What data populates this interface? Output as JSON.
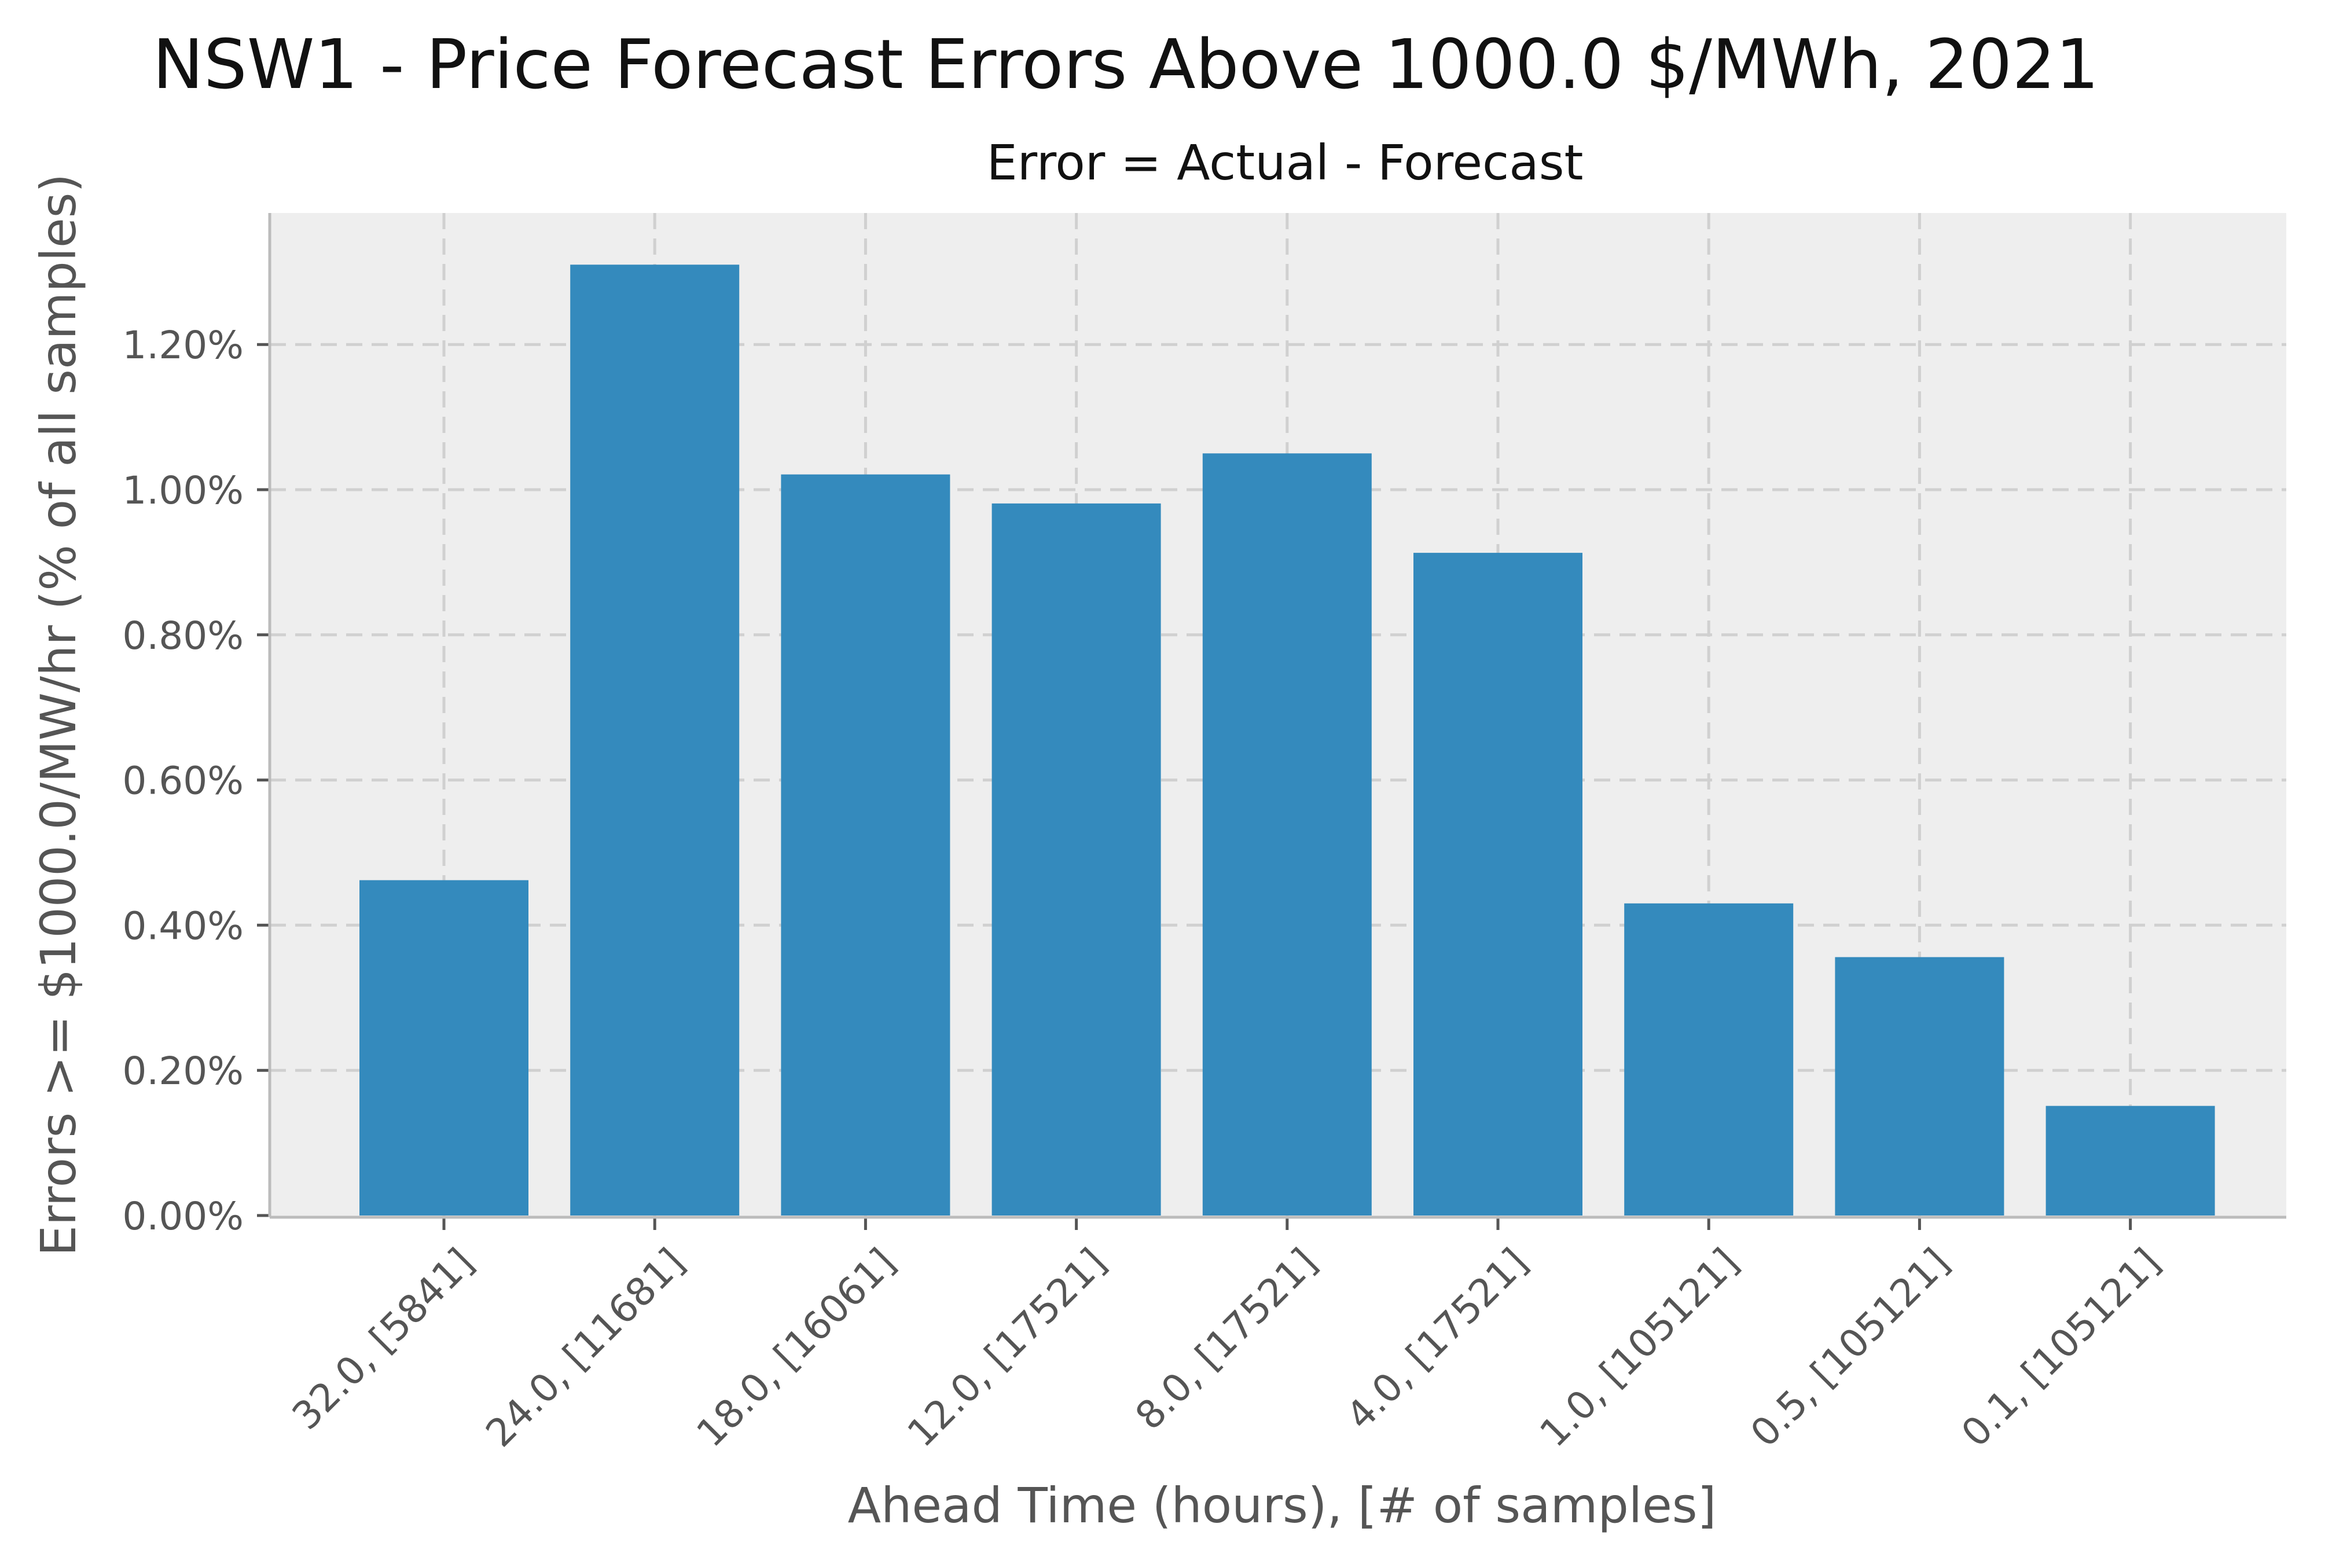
{
  "chart_data": {
    "type": "bar",
    "title": "NSW1 - Price Forecast Errors Above 1000.0 $/MWh, 2021",
    "subtitle": "Error = Actual - Forecast",
    "xlabel": "Ahead Time (hours), [# of samples]",
    "ylabel": "Errors >= $1000.0/MW/hr (% of all samples)",
    "categories": [
      "32.0, [5841]",
      "24.0, [11681]",
      "18.0, [16061]",
      "12.0, [17521]",
      "8.0, [17521]",
      "4.0, [17521]",
      "1.0, [105121]",
      "0.5, [105121]",
      "0.1, [105121]"
    ],
    "values": [
      0.462,
      1.31,
      1.021,
      0.981,
      1.05,
      0.913,
      0.43,
      0.356,
      0.151
    ],
    "value_unit": "%",
    "ylim": [
      0,
      1.38
    ],
    "yticks": [
      0,
      0.2,
      0.4,
      0.6,
      0.8,
      1.0,
      1.2
    ],
    "ytick_labels": [
      "0.00%",
      "0.20%",
      "0.40%",
      "0.60%",
      "0.80%",
      "1.00%",
      "1.20%"
    ],
    "grid": true,
    "colors": {
      "bar": "#348ABD",
      "plot_background": "#EEEEEE",
      "grid": "#D0D0D0",
      "text": "#555555"
    }
  }
}
